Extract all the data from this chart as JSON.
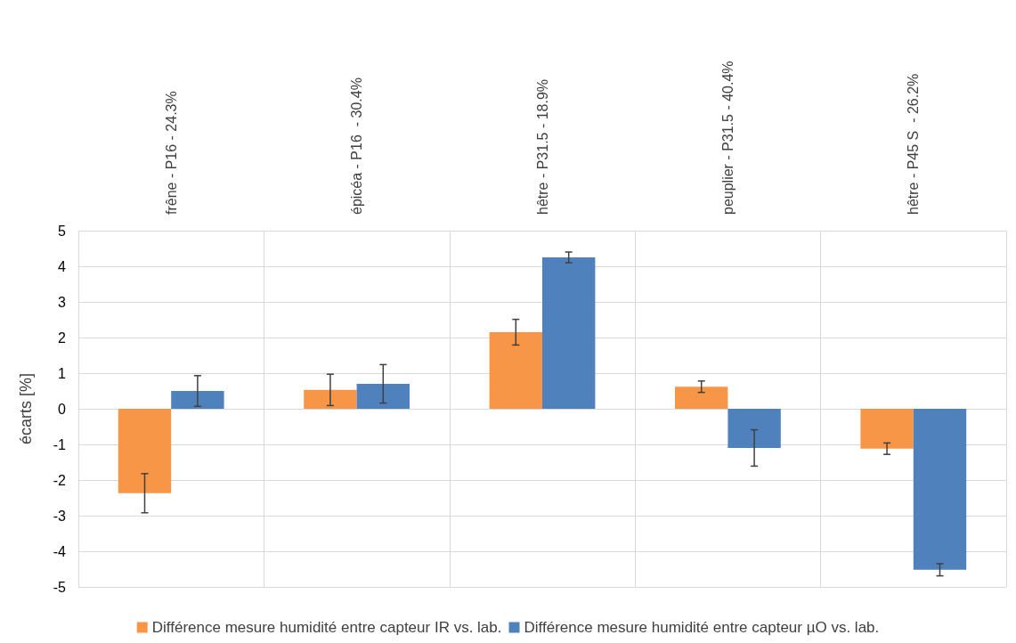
{
  "chart_data": {
    "type": "bar",
    "ylabel": "écarts [%]",
    "categories": [
      "frêne - P16 - 24.3%",
      "épicéa - P16  - 30.4%",
      "hêtre - P31.5 - 18.9%",
      "peuplier - P31.5 - 40.4%",
      "hêtre - P45 S  - 26.2%"
    ],
    "series": [
      {
        "name": "Différence mesure humidité entre capteur IR vs. lab.",
        "color": "#f79646",
        "values": [
          -2.37,
          0.53,
          2.15,
          0.62,
          -1.12
        ],
        "errors": [
          0.55,
          0.44,
          0.36,
          0.16,
          0.16
        ]
      },
      {
        "name": "Différence mesure humidité entre capteur µO vs. lab.",
        "color": "#4f81bd",
        "values": [
          0.5,
          0.7,
          4.25,
          -1.1,
          -4.52
        ],
        "errors": [
          0.43,
          0.54,
          0.15,
          0.51,
          0.17
        ]
      }
    ],
    "ylim": [
      -5,
      5
    ],
    "yticks": [
      -5,
      -4,
      -3,
      -2,
      -1,
      0,
      1,
      2,
      3,
      4,
      5
    ],
    "grid": true,
    "legend": "bottom"
  }
}
